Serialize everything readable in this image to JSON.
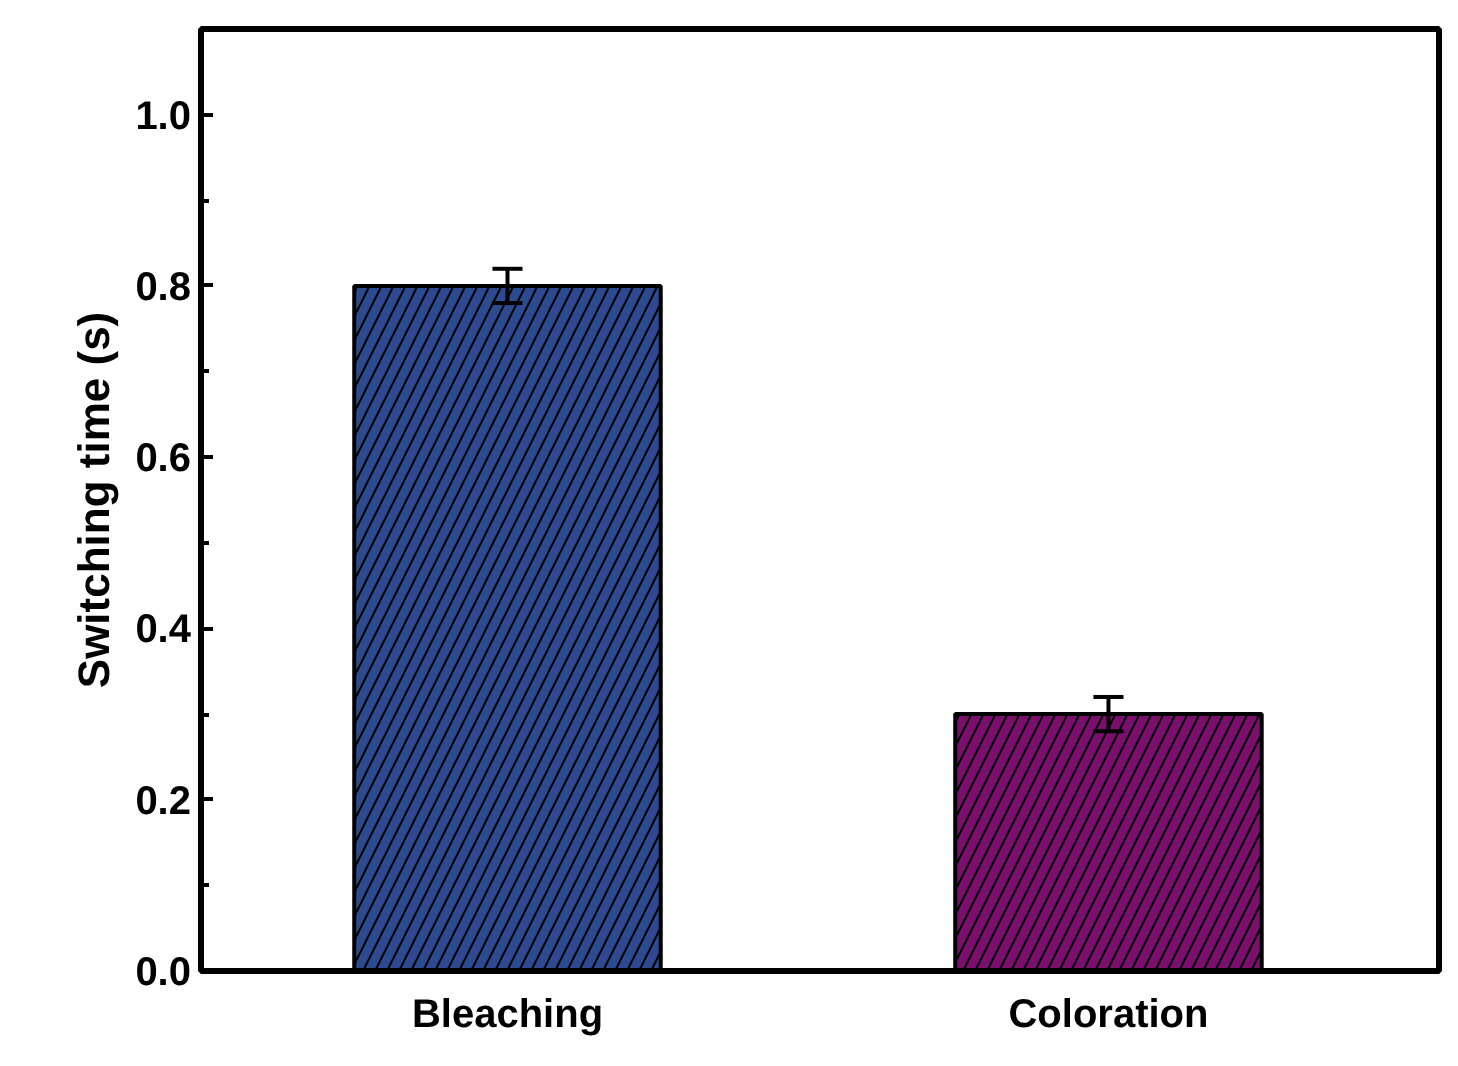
{
  "chart_data": {
    "type": "bar",
    "ylabel": "Switching time (s)",
    "categories": [
      "Bleaching",
      "Coloration"
    ],
    "values": [
      0.8,
      0.3
    ],
    "colors": [
      "#2b4a8f",
      "#7a0f6e"
    ],
    "errors": [
      0.02,
      0.02
    ],
    "ylim": [
      0,
      1.1
    ],
    "yticks": [
      {
        "value": 0,
        "label": "0.0"
      },
      0.2,
      0.4,
      0.6,
      0.8,
      {
        "value": 1,
        "label": "1.0"
      }
    ],
    "grid": false
  }
}
